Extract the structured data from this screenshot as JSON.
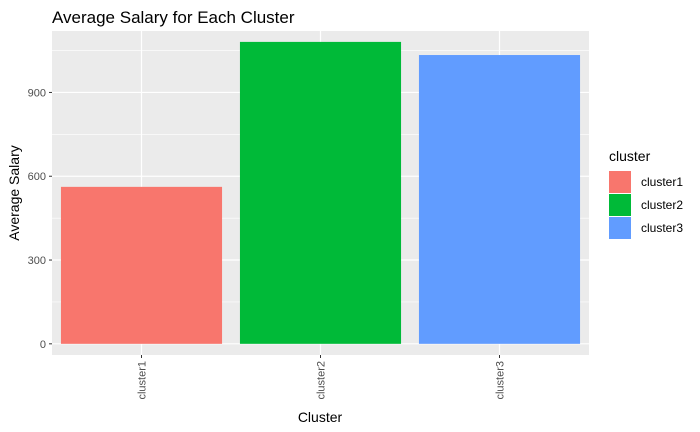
{
  "chart_data": {
    "type": "bar",
    "title": "Average Salary for Each Cluster",
    "xlabel": "Cluster",
    "ylabel": "Average Salary",
    "categories": [
      "cluster1",
      "cluster2",
      "cluster3"
    ],
    "values": [
      562,
      1081,
      1034
    ],
    "colors": [
      "#F8766D",
      "#00BA38",
      "#619CFF"
    ],
    "ylim": [
      -40,
      1120
    ],
    "yticks": [
      0,
      300,
      600,
      900
    ],
    "grid": true,
    "panel_background": "#EBEBEB",
    "gridline_color": "#FFFFFF",
    "x_tick_rotation": "vertical",
    "legend": {
      "title": "cluster",
      "position": "right",
      "items": [
        "cluster1",
        "cluster2",
        "cluster3"
      ]
    }
  }
}
